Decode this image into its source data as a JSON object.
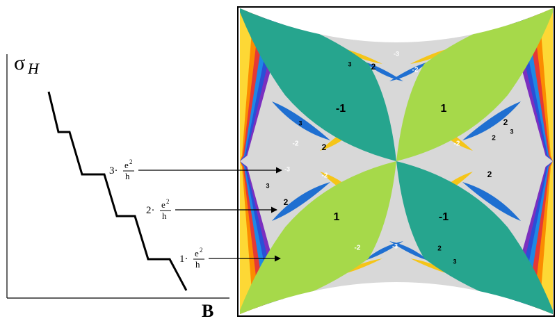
{
  "left_plot": {
    "y_label": {
      "symbol": "σ",
      "subscript": "H"
    },
    "x_label": "B",
    "steps": [
      {
        "multiplier": "3·",
        "numerator": "e",
        "exponent": "2",
        "denominator": "h"
      },
      {
        "multiplier": "2·",
        "numerator": "e",
        "exponent": "2",
        "denominator": "h"
      },
      {
        "multiplier": "1·",
        "numerator": "e",
        "exponent": "2",
        "denominator": "h"
      }
    ]
  },
  "butterfly": {
    "labels": [
      {
        "text": "-1"
      },
      {
        "text": "1"
      },
      {
        "text": "1"
      },
      {
        "text": "-1"
      },
      {
        "text": "2"
      },
      {
        "text": "-2"
      },
      {
        "text": "2"
      },
      {
        "text": "-2"
      },
      {
        "text": "2"
      },
      {
        "text": "-2"
      },
      {
        "text": "2"
      },
      {
        "text": "-2"
      },
      {
        "text": "2"
      },
      {
        "text": "2"
      },
      {
        "text": "-2"
      },
      {
        "text": "2"
      },
      {
        "text": "3"
      },
      {
        "text": "-3"
      },
      {
        "text": "3"
      },
      {
        "text": "-3"
      },
      {
        "text": "3"
      },
      {
        "text": "-3"
      },
      {
        "text": "3"
      },
      {
        "text": "3"
      }
    ]
  }
}
